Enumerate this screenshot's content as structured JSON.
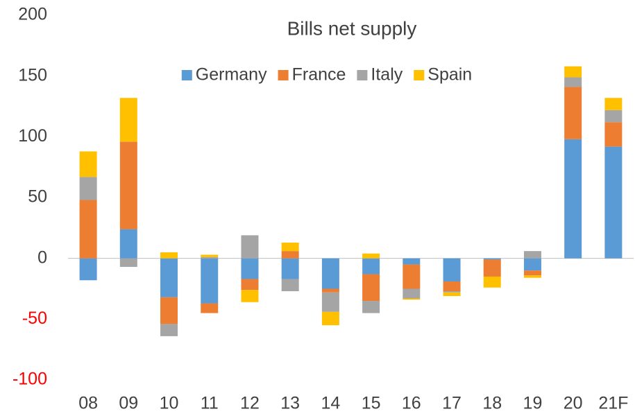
{
  "chart_data": {
    "type": "bar",
    "stacked": true,
    "title": "Bills net supply",
    "categories": [
      "08",
      "09",
      "10",
      "11",
      "12",
      "13",
      "14",
      "15",
      "16",
      "17",
      "18",
      "19",
      "20",
      "21F"
    ],
    "series": [
      {
        "name": "Germany",
        "color": "#5b9bd5",
        "values": [
          -18,
          24,
          -32,
          -37,
          -17,
          -17,
          -25,
          -13,
          -5,
          -19,
          -1,
          -10,
          98,
          92
        ]
      },
      {
        "name": "France",
        "color": "#ed7d31",
        "values": [
          48,
          72,
          -22,
          -8,
          -9,
          6,
          -3,
          -22,
          -20,
          -8,
          -14,
          -4,
          43,
          20
        ]
      },
      {
        "name": "Italy",
        "color": "#a5a5a5",
        "values": [
          19,
          -7,
          -10,
          1,
          19,
          -10,
          -16,
          -10,
          -8,
          -1,
          0,
          6,
          8,
          10
        ]
      },
      {
        "name": "Spain",
        "color": "#ffc000",
        "values": [
          21,
          36,
          5,
          2,
          -10,
          7,
          -11,
          4,
          -1,
          -3,
          -9,
          -2,
          9,
          10
        ]
      }
    ],
    "ylim": [
      -100,
      200
    ],
    "yticks": [
      -100,
      -50,
      0,
      50,
      100,
      150,
      200
    ],
    "negative_tick_color": "#ff0000",
    "grid": false,
    "legend": "top"
  }
}
